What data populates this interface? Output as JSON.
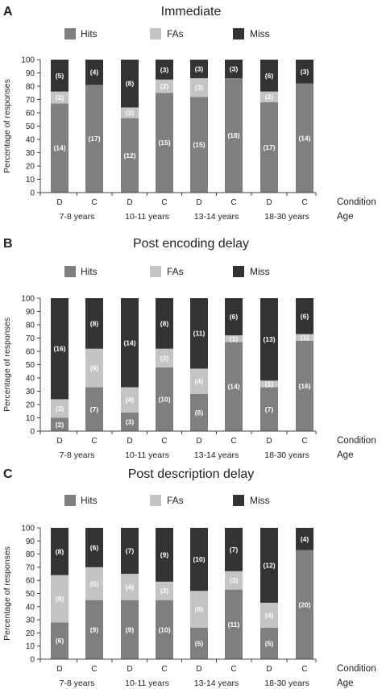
{
  "legend_labels": {
    "hits": "Hits",
    "fas": "FAs",
    "miss": "Miss"
  },
  "colors": {
    "hits": "#7f7f7f",
    "fas": "#c4c4c4",
    "miss": "#333333",
    "label": "#ffffff",
    "axis": "#444444",
    "text": "#222222"
  },
  "chart_data": [
    {
      "type": "bar",
      "stacked": true,
      "panel_letter": "A",
      "title": "Immediate",
      "ylabel": "Percentage of responses",
      "ylim": [
        0,
        100
      ],
      "yticks": [
        0,
        10,
        20,
        30,
        40,
        50,
        60,
        70,
        80,
        90,
        100
      ],
      "legend_position": "top",
      "condition_label": "Condition",
      "age_label": "Age",
      "categories": [
        "D",
        "C",
        "D",
        "C",
        "D",
        "C",
        "D",
        "C"
      ],
      "age_groups": [
        "7-8 years",
        "10-11 years",
        "13-14 years",
        "18-30 years"
      ],
      "series": [
        {
          "name": "Hits",
          "values": [
            67,
            81,
            56,
            75,
            72,
            86,
            68,
            82
          ],
          "counts": [
            "(14)",
            "(17)",
            "(12)",
            "(15)",
            "(15)",
            "(18)",
            "(17)",
            "(14)"
          ]
        },
        {
          "name": "FAs",
          "values": [
            9,
            0,
            8,
            10,
            14,
            0,
            8,
            0
          ],
          "counts": [
            "(2)",
            "",
            "(2)",
            "(2)",
            "(3)",
            "",
            "(2)",
            ""
          ]
        },
        {
          "name": "Miss",
          "values": [
            24,
            19,
            36,
            15,
            14,
            14,
            24,
            18
          ],
          "counts": [
            "(5)",
            "(4)",
            "(8)",
            "(3)",
            "(3)",
            "(3)",
            "(6)",
            "(3)"
          ]
        }
      ]
    },
    {
      "type": "bar",
      "stacked": true,
      "panel_letter": "B",
      "title": "Post encoding delay",
      "ylabel": "Percentage of responses",
      "ylim": [
        0,
        100
      ],
      "yticks": [
        0,
        10,
        20,
        30,
        40,
        50,
        60,
        70,
        80,
        90,
        100
      ],
      "legend_position": "top",
      "condition_label": "Condition",
      "age_label": "Age",
      "categories": [
        "D",
        "C",
        "D",
        "C",
        "D",
        "C",
        "D",
        "C"
      ],
      "age_groups": [
        "7-8 years",
        "10-11 years",
        "13-14 years",
        "18-30 years"
      ],
      "series": [
        {
          "name": "Hits",
          "values": [
            10,
            33,
            14,
            48,
            28,
            67,
            33,
            68
          ],
          "counts": [
            "(2)",
            "(7)",
            "(3)",
            "(10)",
            "(6)",
            "(14)",
            "(7)",
            "(16)"
          ]
        },
        {
          "name": "FAs",
          "values": [
            14,
            29,
            19,
            14,
            19,
            5,
            5,
            5
          ],
          "counts": [
            "(3)",
            "(6)",
            "(4)",
            "(3)",
            "(4)",
            "(1)",
            "(1)",
            "(1)"
          ]
        },
        {
          "name": "Miss",
          "values": [
            76,
            38,
            67,
            38,
            53,
            28,
            62,
            27
          ],
          "counts": [
            "(16)",
            "(8)",
            "(14)",
            "(8)",
            "(11)",
            "(6)",
            "(13)",
            "(6)"
          ]
        }
      ]
    },
    {
      "type": "bar",
      "stacked": true,
      "panel_letter": "C",
      "title": "Post description delay",
      "ylabel": "Percentage of responses",
      "ylim": [
        0,
        100
      ],
      "yticks": [
        0,
        10,
        20,
        30,
        40,
        50,
        60,
        70,
        80,
        90,
        100
      ],
      "legend_position": "top",
      "condition_label": "Condition",
      "age_label": "Age",
      "categories": [
        "D",
        "C",
        "D",
        "C",
        "D",
        "C",
        "D",
        "C"
      ],
      "age_groups": [
        "7-8 years",
        "10-11 years",
        "13-14 years",
        "18-30 years"
      ],
      "series": [
        {
          "name": "Hits",
          "values": [
            28,
            45,
            45,
            45,
            24,
            53,
            24,
            83
          ],
          "counts": [
            "(6)",
            "(9)",
            "(9)",
            "(10)",
            "(5)",
            "(11)",
            "(5)",
            "(20)"
          ]
        },
        {
          "name": "FAs",
          "values": [
            36,
            25,
            20,
            14,
            28,
            14,
            19,
            0
          ],
          "counts": [
            "(8)",
            "(5)",
            "(4)",
            "(3)",
            "(6)",
            "(3)",
            "(4)",
            ""
          ]
        },
        {
          "name": "Miss",
          "values": [
            36,
            30,
            35,
            41,
            48,
            33,
            57,
            17
          ],
          "counts": [
            "(8)",
            "(6)",
            "(7)",
            "(9)",
            "(10)",
            "(7)",
            "(12)",
            "(4)"
          ]
        }
      ]
    }
  ]
}
